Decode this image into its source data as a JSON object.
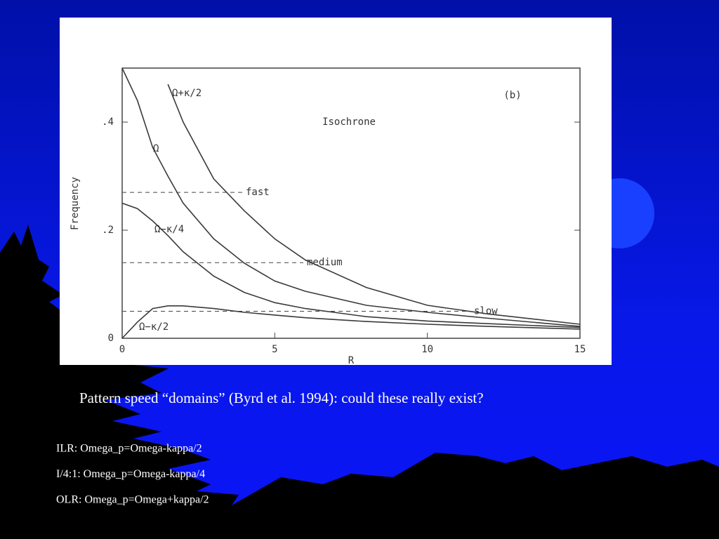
{
  "chart_data": {
    "type": "line",
    "title": "Isochrone",
    "panel_label": "(b)",
    "x_label": "R",
    "y_label": "Frequency",
    "x": [
      0,
      0.5,
      1,
      1.5,
      2,
      3,
      4,
      5,
      6,
      8,
      10,
      12,
      15
    ],
    "series": [
      {
        "name": "Ω+κ/2",
        "color": "#3a3a3a",
        "values": [
          null,
          null,
          null,
          0.47,
          0.4,
          0.295,
          0.236,
          0.184,
          0.145,
          0.094,
          0.061,
          0.045,
          0.026
        ]
      },
      {
        "name": "Ω",
        "color": "#3a3a3a",
        "values": [
          0.5,
          0.44,
          0.353,
          0.3,
          0.25,
          0.184,
          0.139,
          0.106,
          0.087,
          0.061,
          0.048,
          0.037,
          0.022
        ]
      },
      {
        "name": "Ω−κ/4",
        "color": "#3a3a3a",
        "values": [
          0.25,
          0.24,
          0.217,
          0.19,
          0.16,
          0.115,
          0.085,
          0.066,
          0.055,
          0.04,
          0.032,
          0.027,
          0.02
        ]
      },
      {
        "name": "Ω−κ/2",
        "color": "#3a3a3a",
        "values": [
          0,
          0.03,
          0.055,
          0.06,
          0.06,
          0.055,
          0.048,
          0.043,
          0.038,
          0.031,
          0.026,
          0.022,
          0.017
        ]
      }
    ],
    "levels": [
      {
        "label": "fast",
        "value": 0.27
      },
      {
        "label": "medium",
        "value": 0.14
      },
      {
        "label": "slow",
        "value": 0.05
      }
    ],
    "xlim": [
      0,
      15
    ],
    "xticks": [
      0,
      5,
      10,
      15
    ],
    "ylim": [
      0,
      0.5
    ],
    "yticks": [
      0,
      {
        "value": 0.2,
        "label": ".2"
      },
      {
        "value": 0.4,
        "label": ".4"
      }
    ]
  },
  "caption": "Pattern speed “domains” (Byrd et al. 1994): could these really exist?",
  "bullets": [
    "ILR: Omega_p=Omega-kappa/2",
    "I/4:1: Omega_p=Omega-kappa/4",
    "OLR: Omega_p=Omega+kappa/2"
  ]
}
